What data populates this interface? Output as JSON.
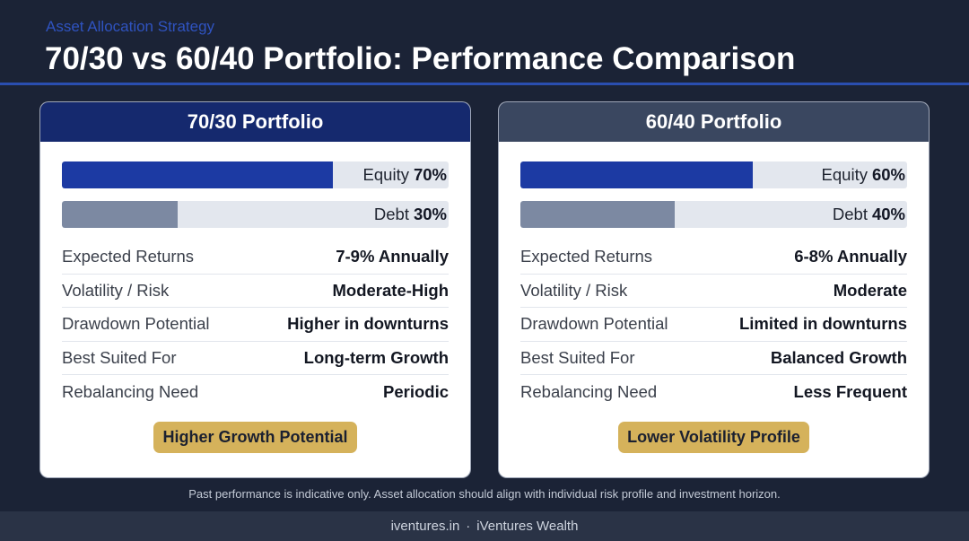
{
  "header": {
    "eyebrow": "Asset Allocation Strategy",
    "title": "70/30 vs 60/40 Portfolio: Performance Comparison"
  },
  "colors": {
    "background": "#1b2336",
    "eyebrow": "#2f53c0",
    "accent": "#2a4eb0",
    "track": "#e3e7ee",
    "badge": "#d5b25b",
    "footer_bar": "#2a3346"
  },
  "cards": [
    {
      "title": "70/30 Portfolio",
      "header_color": "#15296e",
      "allocations": [
        {
          "label": "Equity",
          "value": "70%",
          "percent": 70,
          "color": "#1c3aa3"
        },
        {
          "label": "Debt",
          "value": "30%",
          "percent": 30,
          "color": "#7c89a2"
        }
      ],
      "metrics": [
        {
          "label": "Expected Returns",
          "value": "7-9% Annually"
        },
        {
          "label": "Volatility / Risk",
          "value": "Moderate-High"
        },
        {
          "label": "Drawdown Potential",
          "value": "Higher in downturns"
        },
        {
          "label": "Best Suited For",
          "value": "Long-term Growth"
        },
        {
          "label": "Rebalancing Need",
          "value": "Periodic"
        }
      ],
      "badge": "Higher Growth Potential"
    },
    {
      "title": "60/40 Portfolio",
      "header_color": "#3a4760",
      "allocations": [
        {
          "label": "Equity",
          "value": "60%",
          "percent": 60,
          "color": "#1c3aa3"
        },
        {
          "label": "Debt",
          "value": "40%",
          "percent": 40,
          "color": "#7c89a2"
        }
      ],
      "metrics": [
        {
          "label": "Expected Returns",
          "value": "6-8% Annually"
        },
        {
          "label": "Volatility / Risk",
          "value": "Moderate"
        },
        {
          "label": "Drawdown Potential",
          "value": "Limited in downturns"
        },
        {
          "label": "Best Suited For",
          "value": "Balanced Growth"
        },
        {
          "label": "Rebalancing Need",
          "value": "Less Frequent"
        }
      ],
      "badge": "Lower Volatility Profile"
    }
  ],
  "footnote": "Past performance is indicative only. Asset allocation should align with individual risk profile and investment horizon.",
  "footer": {
    "site": "iventures.in",
    "separator": "·",
    "brand": "iVentures Wealth"
  }
}
